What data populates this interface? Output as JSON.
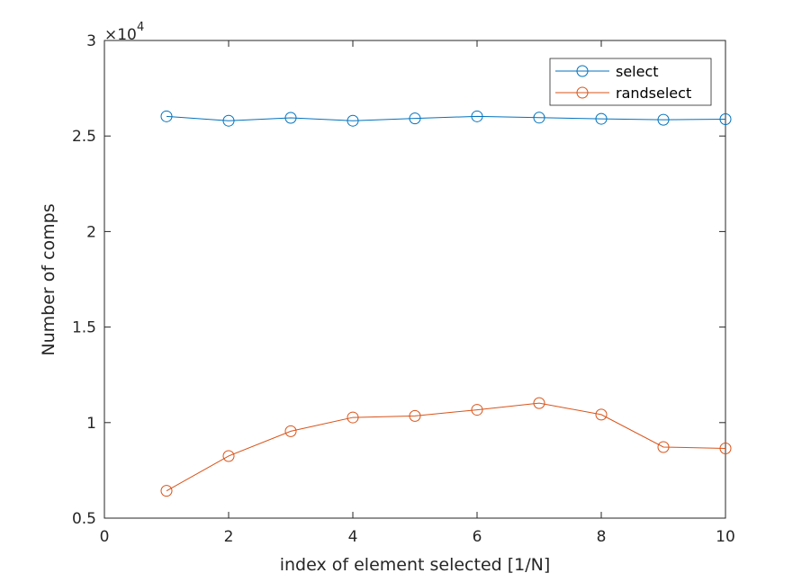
{
  "chart_data": {
    "type": "line",
    "title": "",
    "xlabel": "index of element selected [1/N]",
    "ylabel": "Number of comps",
    "y_exponent_base": "×10",
    "y_exponent_power": "4",
    "xlim": [
      0,
      10
    ],
    "ylim": [
      0.5,
      3
    ],
    "xticks": [
      0,
      2,
      4,
      6,
      8,
      10
    ],
    "xtick_labels": [
      "0",
      "2",
      "4",
      "6",
      "8",
      "10"
    ],
    "yticks": [
      0.5,
      1,
      1.5,
      2,
      2.5,
      3
    ],
    "ytick_labels": [
      "0.5",
      "1",
      "1.5",
      "2",
      "2.5",
      "3"
    ],
    "grid": false,
    "legend_position": "top-right",
    "x": [
      1,
      2,
      3,
      4,
      5,
      6,
      7,
      8,
      9,
      10
    ],
    "series": [
      {
        "name": "select",
        "color": "#0072BD",
        "marker": "circle",
        "values": [
          2.603,
          2.58,
          2.595,
          2.58,
          2.592,
          2.603,
          2.596,
          2.59,
          2.585,
          2.588
        ]
      },
      {
        "name": "randselect",
        "color": "#D95319",
        "marker": "circle",
        "values": [
          0.643,
          0.825,
          0.955,
          1.027,
          1.035,
          1.067,
          1.102,
          1.042,
          0.872,
          0.865
        ]
      }
    ]
  }
}
